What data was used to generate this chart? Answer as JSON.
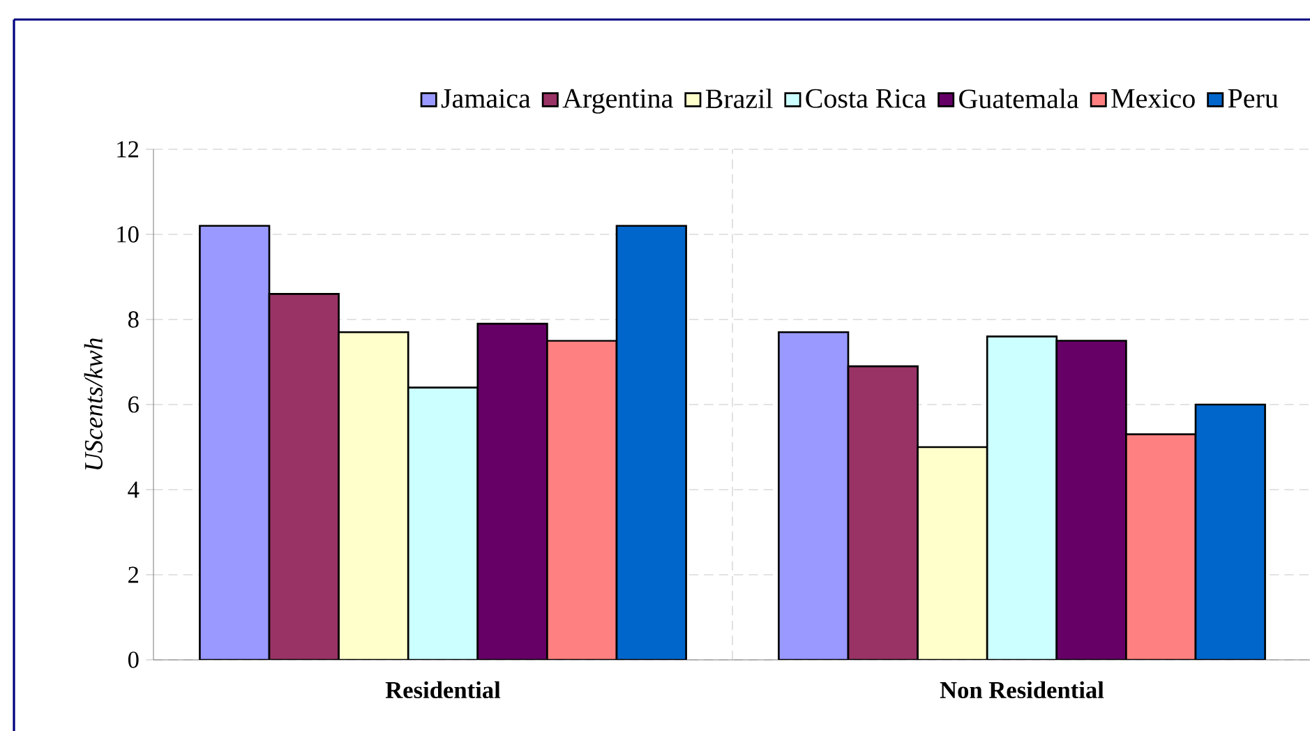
{
  "chart_data": {
    "type": "bar",
    "ylabel": "*UScents/kwh*",
    "categories": [
      "**Residential**",
      "**Non Residential**"
    ],
    "series": [
      {
        "name": "Jamaica",
        "color": "#9999ff",
        "values": [
          10.2,
          7.7
        ]
      },
      {
        "name": "Argentina",
        "color": "#993366",
        "values": [
          8.6,
          6.9
        ]
      },
      {
        "name": "Brazil",
        "color": "#ffffcc",
        "values": [
          7.7,
          5.0
        ]
      },
      {
        "name": "Costa Rica",
        "color": "#ccffff",
        "values": [
          6.4,
          7.6
        ]
      },
      {
        "name": "Guatemala",
        "color": "#660066",
        "values": [
          7.9,
          7.5
        ]
      },
      {
        "name": "Mexico",
        "color": "#ff8080",
        "values": [
          7.5,
          5.3
        ]
      },
      {
        "name": "Peru",
        "color": "#0066cc",
        "values": [
          10.2,
          6.0
        ]
      }
    ],
    "ylim": [
      0,
      12
    ],
    "yticks": [
      0,
      2,
      4,
      6,
      8,
      10,
      12
    ],
    "grid": true,
    "legend": "top"
  }
}
